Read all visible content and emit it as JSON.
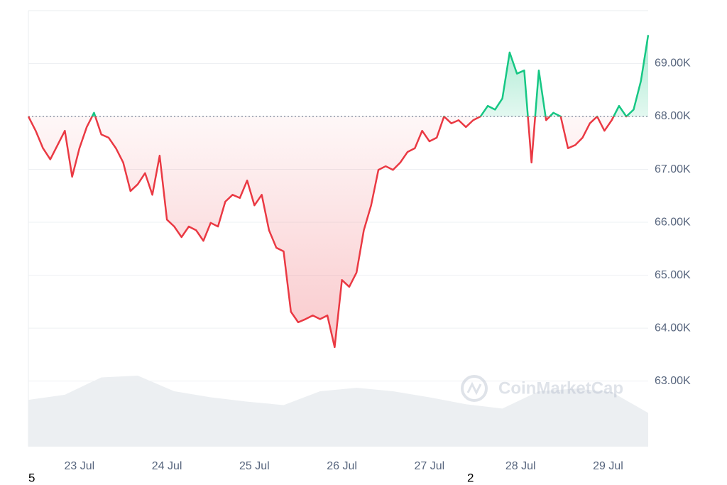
{
  "chart_data": {
    "type": "baseline-line",
    "watermark": "CoinMarketCap",
    "notes": [
      "5",
      "2"
    ],
    "xlim": [
      0,
      85
    ],
    "xticks": [
      {
        "value": 7,
        "label": "23 Jul"
      },
      {
        "value": 19,
        "label": "24 Jul"
      },
      {
        "value": 31,
        "label": "25 Jul"
      },
      {
        "value": 43,
        "label": "26 Jul"
      },
      {
        "value": 55,
        "label": "27 Jul"
      },
      {
        "value": 67.5,
        "label": "28 Jul"
      },
      {
        "value": 79.5,
        "label": "29 Jul"
      }
    ],
    "ylim": [
      61760,
      70000
    ],
    "yticks": [
      {
        "value": 63000,
        "label": "63.00K"
      },
      {
        "value": 64000,
        "label": "64.00K"
      },
      {
        "value": 65000,
        "label": "65.00K"
      },
      {
        "value": 66000,
        "label": "66.00K"
      },
      {
        "value": 67000,
        "label": "67.00K"
      },
      {
        "value": 68000,
        "label": "68.00K"
      },
      {
        "value": 69000,
        "label": "69.00K"
      }
    ],
    "grid": true,
    "baseline": 68000,
    "series": [
      {
        "color_above": "#16c784",
        "color_below": "#ea3943",
        "values": [
          68000,
          67730,
          67400,
          67190,
          67460,
          67730,
          66860,
          67400,
          67800,
          68070,
          67660,
          67600,
          67400,
          67130,
          66590,
          66720,
          66930,
          66520,
          67260,
          66050,
          65920,
          65720,
          65920,
          65850,
          65650,
          65990,
          65920,
          66390,
          66520,
          66460,
          66790,
          66320,
          66520,
          65850,
          65520,
          65450,
          64310,
          64110,
          64170,
          64240,
          64170,
          64240,
          63640,
          64910,
          64780,
          65050,
          65850,
          66320,
          66990,
          67060,
          66990,
          67130,
          67330,
          67400,
          67730,
          67530,
          67600,
          68000,
          67870,
          67930,
          67800,
          67930,
          68000,
          68200,
          68130,
          68340,
          69210,
          68810,
          68870,
          67130,
          68870,
          67930,
          68070,
          68000,
          67400,
          67460,
          67600,
          67870,
          68000,
          67730,
          67930,
          68200,
          68000,
          68130,
          68670,
          69540
        ]
      }
    ],
    "volume": {
      "color": "#eceff2",
      "values": [
        54,
        60,
        80,
        82,
        64,
        57,
        52,
        48,
        64,
        68,
        64,
        57,
        49,
        44,
        64,
        67,
        63,
        39
      ]
    }
  }
}
